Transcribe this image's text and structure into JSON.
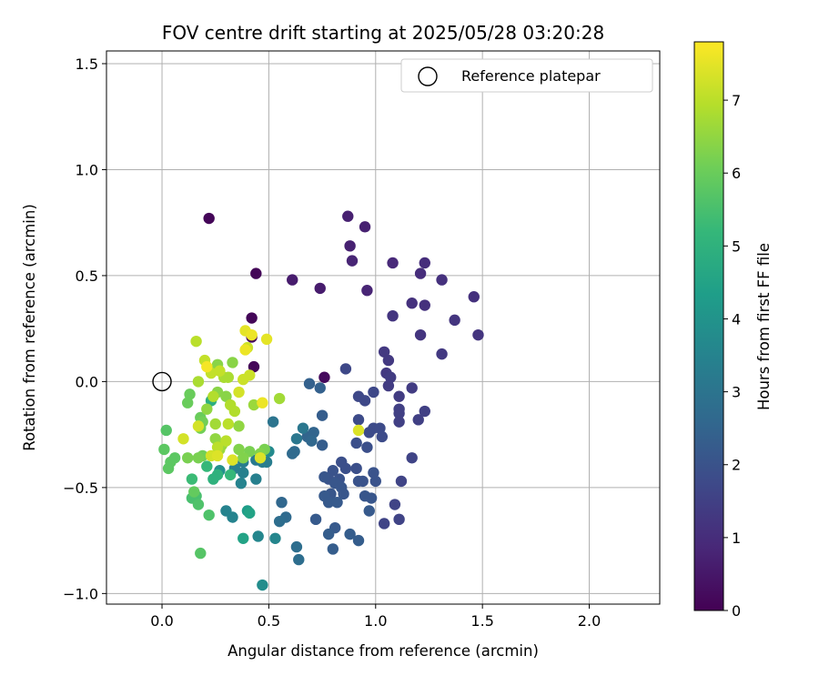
{
  "chart_data": {
    "type": "scatter",
    "title": "FOV centre drift starting at 2025/05/28 03:20:28",
    "xlabel": "Angular distance from reference (arcmin)",
    "ylabel": "Rotation from reference (arcmin)",
    "xlim": [
      -0.26,
      2.33
    ],
    "ylim": [
      -1.05,
      1.56
    ],
    "xticks": [
      0.0,
      0.5,
      1.0,
      1.5,
      2.0
    ],
    "xtick_labels": [
      "0.0",
      "0.5",
      "1.0",
      "1.5",
      "2.0"
    ],
    "yticks": [
      -1.0,
      -0.5,
      0.0,
      0.5,
      1.0,
      1.5
    ],
    "ytick_labels": [
      "−1.0",
      "−0.5",
      "0.0",
      "0.5",
      "1.0",
      "1.5"
    ],
    "grid": true,
    "legend": {
      "position": "top-right",
      "entries": [
        "Reference platepar"
      ]
    },
    "reference_point": {
      "x": 0.0,
      "y": 0.0
    },
    "colorbar": {
      "label": "Hours from first FF file",
      "range": [
        0,
        7.8
      ],
      "ticks": [
        0,
        1,
        2,
        3,
        4,
        5,
        6,
        7
      ],
      "tick_labels": [
        "0",
        "1",
        "2",
        "3",
        "4",
        "5",
        "6",
        "7"
      ],
      "colormap": "viridis"
    },
    "points": [
      {
        "x": 0.22,
        "y": 0.77,
        "c": 0.1
      },
      {
        "x": 0.44,
        "y": 0.51,
        "c": 0.1
      },
      {
        "x": 0.42,
        "y": 0.3,
        "c": 0.1
      },
      {
        "x": 0.42,
        "y": 0.21,
        "c": 0.1
      },
      {
        "x": 0.43,
        "y": 0.07,
        "c": 0.1
      },
      {
        "x": 0.76,
        "y": 0.02,
        "c": 0.2
      },
      {
        "x": 0.61,
        "y": 0.48,
        "c": 0.6
      },
      {
        "x": 0.74,
        "y": 0.44,
        "c": 0.6
      },
      {
        "x": 0.87,
        "y": 0.78,
        "c": 0.7
      },
      {
        "x": 0.95,
        "y": 0.73,
        "c": 0.7
      },
      {
        "x": 0.88,
        "y": 0.64,
        "c": 0.7
      },
      {
        "x": 0.89,
        "y": 0.57,
        "c": 0.8
      },
      {
        "x": 0.96,
        "y": 0.43,
        "c": 0.8
      },
      {
        "x": 1.08,
        "y": 0.56,
        "c": 0.9
      },
      {
        "x": 1.23,
        "y": 0.56,
        "c": 1.0
      },
      {
        "x": 1.21,
        "y": 0.51,
        "c": 1.0
      },
      {
        "x": 1.31,
        "y": 0.48,
        "c": 1.1
      },
      {
        "x": 1.46,
        "y": 0.4,
        "c": 1.1
      },
      {
        "x": 1.17,
        "y": 0.37,
        "c": 1.1
      },
      {
        "x": 1.23,
        "y": 0.36,
        "c": 1.1
      },
      {
        "x": 1.08,
        "y": 0.31,
        "c": 1.2
      },
      {
        "x": 1.37,
        "y": 0.29,
        "c": 1.2
      },
      {
        "x": 1.48,
        "y": 0.22,
        "c": 1.2
      },
      {
        "x": 1.21,
        "y": 0.22,
        "c": 1.2
      },
      {
        "x": 1.31,
        "y": 0.13,
        "c": 1.3
      },
      {
        "x": 1.04,
        "y": 0.14,
        "c": 1.3
      },
      {
        "x": 1.06,
        "y": 0.1,
        "c": 1.3
      },
      {
        "x": 1.05,
        "y": 0.04,
        "c": 1.3
      },
      {
        "x": 1.07,
        "y": 0.02,
        "c": 1.4
      },
      {
        "x": 1.06,
        "y": -0.02,
        "c": 1.4
      },
      {
        "x": 1.17,
        "y": -0.03,
        "c": 1.4
      },
      {
        "x": 1.11,
        "y": -0.07,
        "c": 1.4
      },
      {
        "x": 1.11,
        "y": -0.13,
        "c": 1.5
      },
      {
        "x": 1.23,
        "y": -0.14,
        "c": 1.5
      },
      {
        "x": 1.11,
        "y": -0.15,
        "c": 1.5
      },
      {
        "x": 1.2,
        "y": -0.18,
        "c": 1.5
      },
      {
        "x": 1.11,
        "y": -0.19,
        "c": 1.5
      },
      {
        "x": 1.17,
        "y": -0.36,
        "c": 1.6
      },
      {
        "x": 1.12,
        "y": -0.47,
        "c": 1.6
      },
      {
        "x": 1.09,
        "y": -0.58,
        "c": 1.6
      },
      {
        "x": 1.11,
        "y": -0.65,
        "c": 1.6
      },
      {
        "x": 1.04,
        "y": -0.67,
        "c": 1.6
      },
      {
        "x": 0.86,
        "y": 0.06,
        "c": 1.7
      },
      {
        "x": 0.99,
        "y": -0.05,
        "c": 1.7
      },
      {
        "x": 0.92,
        "y": -0.07,
        "c": 1.7
      },
      {
        "x": 0.95,
        "y": -0.09,
        "c": 1.7
      },
      {
        "x": 0.99,
        "y": -0.22,
        "c": 1.8
      },
      {
        "x": 1.02,
        "y": -0.22,
        "c": 1.8
      },
      {
        "x": 0.97,
        "y": -0.24,
        "c": 1.8
      },
      {
        "x": 1.03,
        "y": -0.26,
        "c": 1.8
      },
      {
        "x": 0.92,
        "y": -0.18,
        "c": 1.8
      },
      {
        "x": 0.91,
        "y": -0.29,
        "c": 1.9
      },
      {
        "x": 0.96,
        "y": -0.31,
        "c": 1.9
      },
      {
        "x": 0.84,
        "y": -0.38,
        "c": 1.9
      },
      {
        "x": 0.86,
        "y": -0.41,
        "c": 1.9
      },
      {
        "x": 0.91,
        "y": -0.41,
        "c": 1.9
      },
      {
        "x": 0.99,
        "y": -0.43,
        "c": 2.0
      },
      {
        "x": 0.92,
        "y": -0.47,
        "c": 2.0
      },
      {
        "x": 0.94,
        "y": -0.47,
        "c": 2.0
      },
      {
        "x": 1.0,
        "y": -0.47,
        "c": 2.0
      },
      {
        "x": 0.8,
        "y": -0.42,
        "c": 2.0
      },
      {
        "x": 0.83,
        "y": -0.46,
        "c": 2.0
      },
      {
        "x": 0.78,
        "y": -0.46,
        "c": 2.0
      },
      {
        "x": 0.76,
        "y": -0.45,
        "c": 2.1
      },
      {
        "x": 0.81,
        "y": -0.48,
        "c": 2.1
      },
      {
        "x": 0.84,
        "y": -0.5,
        "c": 2.1
      },
      {
        "x": 0.79,
        "y": -0.53,
        "c": 2.1
      },
      {
        "x": 0.85,
        "y": -0.53,
        "c": 2.1
      },
      {
        "x": 0.95,
        "y": -0.54,
        "c": 2.1
      },
      {
        "x": 0.98,
        "y": -0.55,
        "c": 2.1
      },
      {
        "x": 0.76,
        "y": -0.54,
        "c": 2.2
      },
      {
        "x": 0.78,
        "y": -0.57,
        "c": 2.2
      },
      {
        "x": 0.82,
        "y": -0.57,
        "c": 2.2
      },
      {
        "x": 0.97,
        "y": -0.61,
        "c": 2.2
      },
      {
        "x": 0.72,
        "y": -0.65,
        "c": 2.2
      },
      {
        "x": 0.81,
        "y": -0.69,
        "c": 2.2
      },
      {
        "x": 0.78,
        "y": -0.72,
        "c": 2.3
      },
      {
        "x": 0.88,
        "y": -0.72,
        "c": 2.3
      },
      {
        "x": 0.92,
        "y": -0.75,
        "c": 2.3
      },
      {
        "x": 0.8,
        "y": -0.79,
        "c": 2.3
      },
      {
        "x": 0.75,
        "y": -0.16,
        "c": 2.3
      },
      {
        "x": 0.75,
        "y": -0.3,
        "c": 2.3
      },
      {
        "x": 0.69,
        "y": -0.01,
        "c": 2.4
      },
      {
        "x": 0.74,
        "y": -0.03,
        "c": 2.4
      },
      {
        "x": 0.71,
        "y": -0.24,
        "c": 2.5
      },
      {
        "x": 0.68,
        "y": -0.26,
        "c": 2.5
      },
      {
        "x": 0.7,
        "y": -0.28,
        "c": 2.6
      },
      {
        "x": 0.62,
        "y": -0.33,
        "c": 2.7
      },
      {
        "x": 0.61,
        "y": -0.34,
        "c": 2.7
      },
      {
        "x": 0.56,
        "y": -0.57,
        "c": 2.6
      },
      {
        "x": 0.58,
        "y": -0.64,
        "c": 2.7
      },
      {
        "x": 0.55,
        "y": -0.66,
        "c": 2.8
      },
      {
        "x": 0.63,
        "y": -0.78,
        "c": 2.8
      },
      {
        "x": 0.64,
        "y": -0.84,
        "c": 2.8
      },
      {
        "x": 0.52,
        "y": -0.19,
        "c": 3.0
      },
      {
        "x": 0.66,
        "y": -0.22,
        "c": 3.1
      },
      {
        "x": 0.63,
        "y": -0.27,
        "c": 3.1
      },
      {
        "x": 0.44,
        "y": -0.37,
        "c": 3.2
      },
      {
        "x": 0.47,
        "y": -0.38,
        "c": 3.3
      },
      {
        "x": 0.49,
        "y": -0.38,
        "c": 3.3
      },
      {
        "x": 0.38,
        "y": -0.38,
        "c": 3.3
      },
      {
        "x": 0.34,
        "y": -0.41,
        "c": 3.4
      },
      {
        "x": 0.38,
        "y": -0.43,
        "c": 3.4
      },
      {
        "x": 0.44,
        "y": -0.46,
        "c": 3.4
      },
      {
        "x": 0.37,
        "y": -0.48,
        "c": 3.5
      },
      {
        "x": 0.3,
        "y": -0.61,
        "c": 3.5
      },
      {
        "x": 0.33,
        "y": -0.64,
        "c": 3.5
      },
      {
        "x": 0.45,
        "y": -0.73,
        "c": 3.6
      },
      {
        "x": 0.53,
        "y": -0.74,
        "c": 3.6
      },
      {
        "x": 0.47,
        "y": -0.96,
        "c": 3.8
      },
      {
        "x": 0.5,
        "y": -0.33,
        "c": 3.7
      },
      {
        "x": 0.27,
        "y": -0.42,
        "c": 3.9
      },
      {
        "x": 0.4,
        "y": -0.61,
        "c": 4.3
      },
      {
        "x": 0.41,
        "y": -0.62,
        "c": 4.5
      },
      {
        "x": 0.38,
        "y": -0.74,
        "c": 4.5
      },
      {
        "x": 0.23,
        "y": -0.09,
        "c": 4.9
      },
      {
        "x": 0.26,
        "y": -0.44,
        "c": 5.0
      },
      {
        "x": 0.24,
        "y": -0.46,
        "c": 5.0
      },
      {
        "x": 0.21,
        "y": -0.4,
        "c": 5.2
      },
      {
        "x": 0.32,
        "y": -0.44,
        "c": 5.2
      },
      {
        "x": 0.14,
        "y": -0.46,
        "c": 5.3
      },
      {
        "x": 0.14,
        "y": -0.55,
        "c": 5.5
      },
      {
        "x": 0.16,
        "y": -0.54,
        "c": 5.5
      },
      {
        "x": 0.17,
        "y": -0.58,
        "c": 5.6
      },
      {
        "x": 0.22,
        "y": -0.63,
        "c": 5.6
      },
      {
        "x": 0.18,
        "y": -0.81,
        "c": 5.7
      },
      {
        "x": 0.02,
        "y": -0.23,
        "c": 5.7
      },
      {
        "x": 0.01,
        "y": -0.32,
        "c": 5.8
      },
      {
        "x": 0.06,
        "y": -0.36,
        "c": 5.8
      },
      {
        "x": 0.04,
        "y": -0.38,
        "c": 5.8
      },
      {
        "x": 0.03,
        "y": -0.41,
        "c": 5.8
      },
      {
        "x": 0.15,
        "y": -0.52,
        "c": 5.9
      },
      {
        "x": 0.13,
        "y": -0.06,
        "c": 6.0
      },
      {
        "x": 0.12,
        "y": -0.1,
        "c": 6.0
      },
      {
        "x": 0.18,
        "y": -0.17,
        "c": 6.0
      },
      {
        "x": 0.19,
        "y": -0.19,
        "c": 6.1
      },
      {
        "x": 0.18,
        "y": -0.22,
        "c": 6.1
      },
      {
        "x": 0.19,
        "y": -0.35,
        "c": 6.1
      },
      {
        "x": 0.17,
        "y": -0.36,
        "c": 6.2
      },
      {
        "x": 0.12,
        "y": -0.36,
        "c": 6.2
      },
      {
        "x": 0.48,
        "y": -0.32,
        "c": 6.2
      },
      {
        "x": 0.41,
        "y": -0.33,
        "c": 6.2
      },
      {
        "x": 0.36,
        "y": -0.32,
        "c": 6.3
      },
      {
        "x": 0.38,
        "y": -0.36,
        "c": 6.3
      },
      {
        "x": 0.46,
        "y": -0.34,
        "c": 6.3
      },
      {
        "x": 0.25,
        "y": 0.06,
        "c": 6.3
      },
      {
        "x": 0.26,
        "y": 0.08,
        "c": 6.4
      },
      {
        "x": 0.33,
        "y": 0.09,
        "c": 6.4
      },
      {
        "x": 0.26,
        "y": -0.05,
        "c": 6.4
      },
      {
        "x": 0.3,
        "y": -0.07,
        "c": 6.4
      },
      {
        "x": 0.21,
        "y": -0.13,
        "c": 6.5
      },
      {
        "x": 0.36,
        "y": -0.21,
        "c": 6.5
      },
      {
        "x": 0.25,
        "y": -0.27,
        "c": 6.5
      },
      {
        "x": 0.28,
        "y": -0.3,
        "c": 6.6
      },
      {
        "x": 0.27,
        "y": -0.32,
        "c": 6.6
      },
      {
        "x": 0.43,
        "y": -0.11,
        "c": 6.6
      },
      {
        "x": 0.55,
        "y": -0.08,
        "c": 6.7
      },
      {
        "x": 0.25,
        "y": -0.2,
        "c": 6.7
      },
      {
        "x": 0.17,
        "y": 0.0,
        "c": 6.8
      },
      {
        "x": 0.29,
        "y": 0.02,
        "c": 6.8
      },
      {
        "x": 0.31,
        "y": 0.02,
        "c": 6.8
      },
      {
        "x": 0.24,
        "y": -0.07,
        "c": 6.9
      },
      {
        "x": 0.32,
        "y": -0.11,
        "c": 6.9
      },
      {
        "x": 0.34,
        "y": -0.14,
        "c": 6.9
      },
      {
        "x": 0.31,
        "y": -0.2,
        "c": 7.0
      },
      {
        "x": 0.3,
        "y": -0.28,
        "c": 7.0
      },
      {
        "x": 0.26,
        "y": -0.31,
        "c": 7.0
      },
      {
        "x": 0.16,
        "y": 0.19,
        "c": 7.0
      },
      {
        "x": 0.2,
        "y": 0.1,
        "c": 7.1
      },
      {
        "x": 0.23,
        "y": 0.04,
        "c": 7.1
      },
      {
        "x": 0.27,
        "y": 0.05,
        "c": 7.1
      },
      {
        "x": 0.4,
        "y": 0.16,
        "c": 7.2
      },
      {
        "x": 0.41,
        "y": 0.03,
        "c": 7.2
      },
      {
        "x": 0.38,
        "y": 0.01,
        "c": 7.2
      },
      {
        "x": 0.36,
        "y": -0.05,
        "c": 7.3
      },
      {
        "x": 0.1,
        "y": -0.27,
        "c": 7.3
      },
      {
        "x": 0.17,
        "y": -0.21,
        "c": 7.3
      },
      {
        "x": 0.23,
        "y": -0.35,
        "c": 7.3
      },
      {
        "x": 0.26,
        "y": -0.35,
        "c": 7.4
      },
      {
        "x": 0.33,
        "y": -0.37,
        "c": 7.4
      },
      {
        "x": 0.46,
        "y": -0.36,
        "c": 7.4
      },
      {
        "x": 0.92,
        "y": -0.23,
        "c": 7.4
      },
      {
        "x": 0.39,
        "y": 0.24,
        "c": 7.5
      },
      {
        "x": 0.49,
        "y": 0.2,
        "c": 7.5
      },
      {
        "x": 0.47,
        "y": -0.1,
        "c": 7.6
      },
      {
        "x": 0.39,
        "y": 0.15,
        "c": 7.6
      },
      {
        "x": 0.42,
        "y": 0.22,
        "c": 7.6
      },
      {
        "x": 0.21,
        "y": 0.07,
        "c": 7.7
      }
    ]
  }
}
